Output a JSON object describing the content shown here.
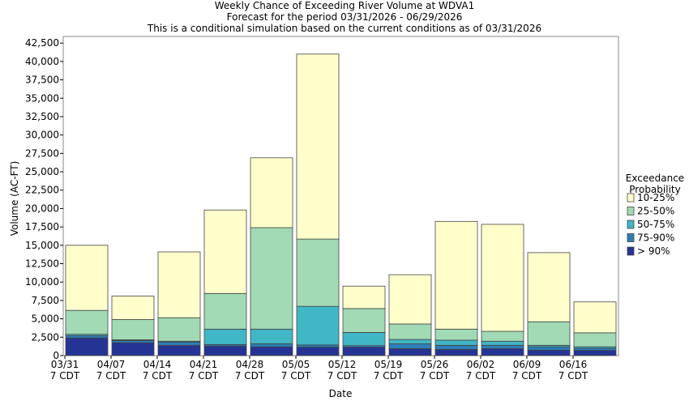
{
  "chart_data": {
    "type": "stacked_bar",
    "title": "Weekly Chance of Exceeding River Volume at WDVA1",
    "subtitles": [
      "Forecast for the period 03/31/2026 - 06/29/2026",
      "This is a conditional simulation based on the current conditions as of 03/31/2026"
    ],
    "x_label": "Date",
    "y_label": "Volume (AC-FT)",
    "legend_title": "Exceedance\nProbability",
    "categories": [
      "03/31\n7 CDT",
      "04/07\n7 CDT",
      "04/14\n7 CDT",
      "04/21\n7 CDT",
      "04/28\n7 CDT",
      "05/05\n7 CDT",
      "05/12\n7 CDT",
      "05/19\n7 CDT",
      "05/26\n7 CDT",
      "06/02\n7 CDT",
      "06/09\n7 CDT",
      "06/16\n7 CDT"
    ],
    "series": [
      {
        "name": "> 90%",
        "color": "#253494",
        "values": [
          2400,
          1750,
          1400,
          1300,
          1200,
          1150,
          1150,
          950,
          850,
          950,
          750,
          700
        ]
      },
      {
        "name": "75-90%",
        "color": "#2c7fb8",
        "values": [
          300,
          300,
          450,
          200,
          400,
          300,
          200,
          650,
          550,
          450,
          450,
          300
        ]
      },
      {
        "name": "50-75%",
        "color": "#41b6c4",
        "values": [
          200,
          100,
          100,
          2100,
          2000,
          5250,
          1800,
          600,
          700,
          550,
          200,
          200
        ]
      },
      {
        "name": "25-50%",
        "color": "#a1dab4",
        "values": [
          3250,
          2750,
          3200,
          4850,
          13800,
          9150,
          3250,
          2100,
          1500,
          1350,
          3200,
          1900
        ]
      },
      {
        "name": "10-25%",
        "color": "#ffffcc",
        "values": [
          8850,
          3200,
          8950,
          11350,
          9500,
          25150,
          3050,
          6700,
          14650,
          14550,
          9400,
          4200
        ]
      }
    ],
    "ylim": [
      0,
      43400
    ],
    "yticks": [
      0,
      {
        "value": 2500,
        "label": "2,500"
      },
      {
        "value": 5000,
        "label": "5,000"
      },
      {
        "value": 7500,
        "label": "7,500"
      },
      {
        "value": 10000,
        "label": "10,000"
      },
      {
        "value": 12500,
        "label": "12,500"
      },
      {
        "value": 15000,
        "label": "15,000"
      },
      {
        "value": 17500,
        "label": "17,500"
      },
      {
        "value": 20000,
        "label": "20,000"
      },
      {
        "value": 22500,
        "label": "22,500"
      },
      {
        "value": 25000,
        "label": "25,000"
      },
      {
        "value": 27500,
        "label": "27,500"
      },
      {
        "value": 30000,
        "label": "30,000"
      },
      {
        "value": 32500,
        "label": "32,500"
      },
      {
        "value": 35000,
        "label": "35,000"
      },
      {
        "value": 37500,
        "label": "37,500"
      },
      {
        "value": 40000,
        "label": "40,000"
      },
      {
        "value": 42500,
        "label": "42,500"
      }
    ]
  }
}
